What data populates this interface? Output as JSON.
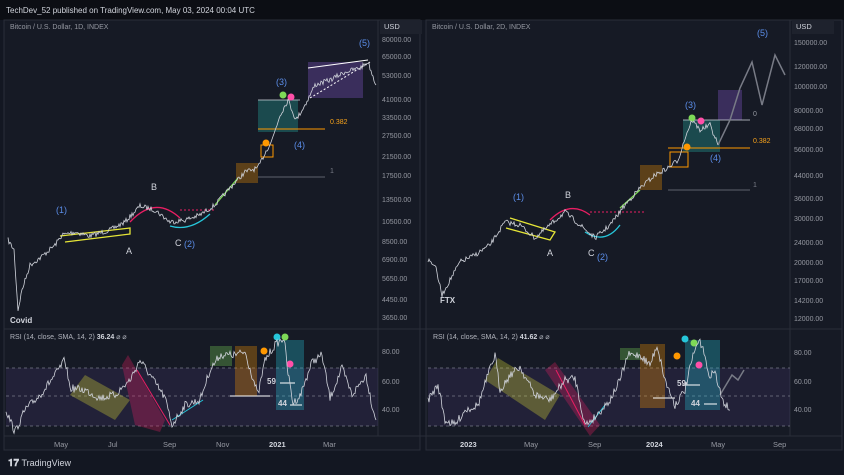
{
  "header": {
    "published": "TechDev_52 published on TradingView.com, May 03, 2024 00:04 UTC"
  },
  "left": {
    "symbol": "Bitcoin / U.S. Dollar, 1D, INDEX",
    "currency": "USD",
    "price_axis": [
      "80000.00",
      "65000.00",
      "53000.00",
      "41000.00",
      "33500.00",
      "27500.00",
      "21500.00",
      "17500.00",
      "13500.00",
      "10500.00",
      "8500.00",
      "6900.00",
      "5650.00",
      "4450.00",
      "3650.00"
    ],
    "rsi_axis": [
      "80.00",
      "60.00",
      "40.00"
    ],
    "rsi_label": "RSI (14, close, SMA, 14, 2)",
    "rsi_value": "36.24",
    "rsi_icons": "⌀ ⌀",
    "time_axis": [
      "May",
      "Jul",
      "Sep",
      "Nov",
      "2021",
      "Mar"
    ],
    "annotations": {
      "w1": "(1)",
      "A": "A",
      "B": "B",
      "C": "C",
      "w2": "(2)",
      "w3": "(3)",
      "w4": "(4)",
      "w5": "(5)",
      "fib382": "0.382",
      "fib1": "1",
      "event": "Covid",
      "rsi59": "59",
      "rsi44": "44"
    }
  },
  "right": {
    "symbol": "Bitcoin / U.S. Dollar, 2D, INDEX",
    "currency": "USD",
    "price_axis": [
      "150000.00",
      "120000.00",
      "100000.00",
      "80000.00",
      "68000.00",
      "56000.00",
      "44000.00",
      "36000.00",
      "30000.00",
      "24000.00",
      "20000.00",
      "17000.00",
      "14200.00",
      "12000.00"
    ],
    "rsi_axis": [
      "80.00",
      "60.00",
      "40.00"
    ],
    "rsi_label": "RSI (14, close, SMA, 14, 2)",
    "rsi_value": "41.62",
    "rsi_icons": "⌀ ⌀",
    "time_axis": [
      "2023",
      "May",
      "Sep",
      "2024",
      "May",
      "Sep"
    ],
    "annotations": {
      "w1": "(1)",
      "A": "A",
      "B": "B",
      "C": "C",
      "w2": "(2)",
      "w3": "(3)",
      "w4": "(4)",
      "w5": "(5)",
      "fib382": "0.382",
      "fib1": "1",
      "fib0": "0",
      "event": "FTX",
      "rsi59": "59",
      "rsi44": "44"
    }
  },
  "footer": {
    "brand": "TradingView"
  },
  "colors": {
    "bg": "#131722",
    "line": "#d1d4dc",
    "wave": "#5b8de8",
    "fib": "#f7a21b",
    "teal": "#26a69a"
  }
}
